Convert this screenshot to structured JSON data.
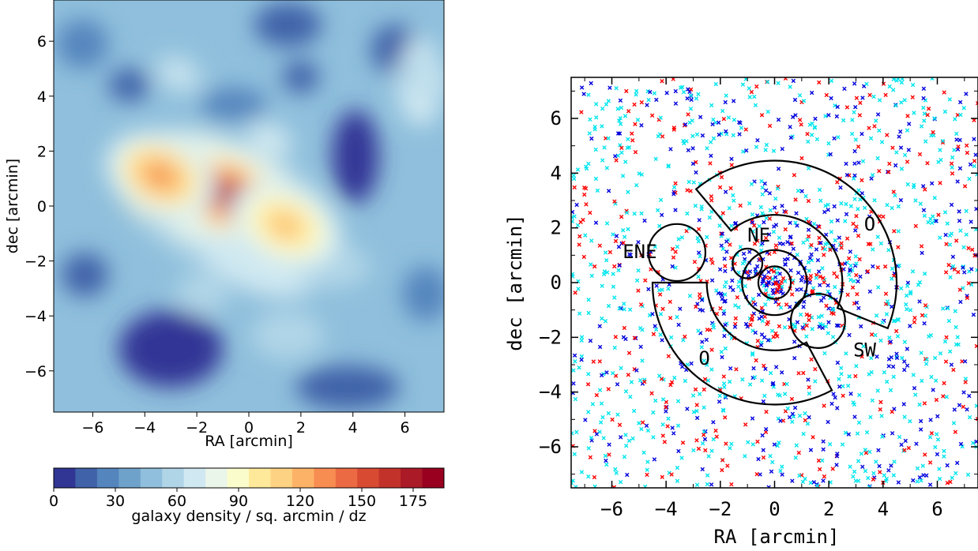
{
  "chart_data": [
    {
      "type": "heatmap",
      "xlabel": "RA [arcmin]",
      "ylabel": "dec [arcmin]",
      "xlim": [
        -7.5,
        7.5
      ],
      "ylim": [
        -7.5,
        7.5
      ],
      "x_ticks": [
        -6,
        -4,
        -2,
        0,
        2,
        4,
        6
      ],
      "y_ticks": [
        -6,
        -4,
        -2,
        0,
        2,
        4,
        6
      ],
      "colorbar": {
        "label": "galaxy density / sq. arcmin / dz",
        "range": [
          0,
          190
        ],
        "ticks": [
          0,
          30,
          60,
          90,
          120,
          150,
          175
        ],
        "colors": [
          "#313695",
          "#4062a8",
          "#5485bd",
          "#6fa2cb",
          "#8fbfdc",
          "#b0d5e7",
          "#cfe8f1",
          "#eaf6e9",
          "#fbfccb",
          "#fee99b",
          "#fed283",
          "#fdb367",
          "#f88d52",
          "#eb6a43",
          "#d94a33",
          "#c3322a",
          "#ab1a27",
          "#99001f"
        ]
      },
      "peaks": [
        {
          "x": -0.8,
          "y": 0.4,
          "level": 185
        },
        {
          "x": -3.4,
          "y": 1.1,
          "level": 140
        },
        {
          "x": 1.4,
          "y": -0.7,
          "level": 120
        },
        {
          "x": 0.8,
          "y": 2.4,
          "level": 75
        },
        {
          "x": -2.7,
          "y": 4.8,
          "level": 70
        },
        {
          "x": 6.9,
          "y": 4.7,
          "level": 70
        }
      ]
    },
    {
      "type": "scatter",
      "xlabel": "RA [arcmin]",
      "ylabel": "dec [arcmin]",
      "xlim": [
        -7.5,
        7.5
      ],
      "ylim": [
        -7.5,
        7.5
      ],
      "x_ticks": [
        -6,
        -4,
        -2,
        0,
        2,
        4,
        6
      ],
      "y_ticks": [
        -6,
        -4,
        -2,
        0,
        2,
        4,
        6
      ],
      "series_colors": [
        "#ff0000",
        "#0000dd",
        "#00e5ee"
      ],
      "circles": [
        {
          "x": 0,
          "y": 0,
          "r": 0.6
        },
        {
          "x": 0,
          "y": 0,
          "r": 1.2
        },
        {
          "x": -1.0,
          "y": 0.7,
          "r": 0.55
        },
        {
          "x": 1.6,
          "y": -1.4,
          "r": 1.0
        },
        {
          "x": -3.6,
          "y": 1.1,
          "r": 1.05
        }
      ],
      "arcs": [
        {
          "r_in": 2.5,
          "r_out": 4.5,
          "theta_start": 130,
          "theta_end": -22
        },
        {
          "r_in": 2.5,
          "r_out": 4.5,
          "theta_start": -62,
          "theta_end": -180
        }
      ],
      "region_labels": [
        {
          "text": "ENE",
          "x": -5.6,
          "y": 0.9
        },
        {
          "text": "NE",
          "x": -1.0,
          "y": 1.5
        },
        {
          "text": "O",
          "x": 3.3,
          "y": 1.9
        },
        {
          "text": "SW",
          "x": 2.9,
          "y": -2.7
        },
        {
          "text": "O",
          "x": -2.8,
          "y": -3.0
        }
      ]
    }
  ]
}
